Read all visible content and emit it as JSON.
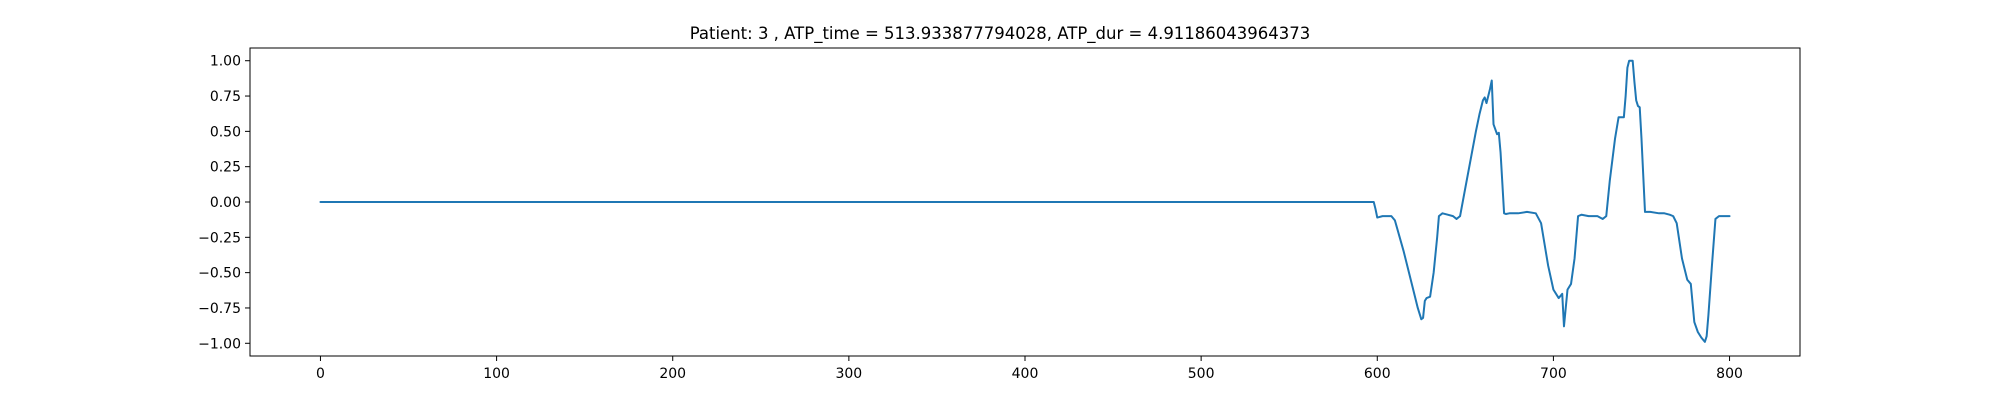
{
  "chart_data": {
    "type": "line",
    "title": "Patient: 3 , ATP_time = 513.933877794028, ATP_dur = 4.91186043964373",
    "xlabel": "",
    "ylabel": "",
    "xlim": [
      -40,
      840
    ],
    "ylim": [
      -1.09,
      1.09
    ],
    "xticks": [
      0,
      100,
      200,
      300,
      400,
      500,
      600,
      700,
      800
    ],
    "yticks": [
      1.0,
      0.75,
      0.5,
      0.25,
      0.0,
      -0.25,
      -0.5,
      -0.75,
      -1.0
    ],
    "xtick_labels": [
      "0",
      "100",
      "200",
      "300",
      "400",
      "500",
      "600",
      "700",
      "800"
    ],
    "ytick_labels": [
      "1.00",
      "0.75",
      "0.50",
      "0.25",
      "0.00",
      "−0.25",
      "−0.50",
      "−0.75",
      "−1.00"
    ],
    "grid": false,
    "series": [
      {
        "color": "#1f77b4",
        "x": [
          0,
          100,
          200,
          300,
          400,
          500,
          598,
          599,
          600,
          603,
          606,
          608,
          610,
          615,
          620,
          623,
          625,
          626,
          627,
          628,
          630,
          632,
          634,
          635,
          637,
          640,
          643,
          645,
          647,
          650,
          653,
          656,
          658,
          660,
          661,
          662,
          664,
          665,
          666,
          668,
          669,
          670,
          672,
          673,
          675,
          680,
          685,
          690,
          693,
          695,
          697,
          700,
          703,
          705,
          706,
          707,
          708,
          710,
          712,
          714,
          716,
          720,
          725,
          728,
          730,
          732,
          735,
          737,
          740,
          741,
          742,
          743,
          744,
          745,
          746,
          747,
          748,
          749,
          750,
          752,
          755,
          760,
          763,
          766,
          768,
          770,
          773,
          776,
          778,
          780,
          782,
          784,
          786,
          787,
          788,
          790,
          792,
          794,
          797,
          800
        ],
        "y": [
          0,
          0,
          0,
          0,
          0,
          0,
          0,
          -0.05,
          -0.11,
          -0.1,
          -0.1,
          -0.1,
          -0.13,
          -0.35,
          -0.6,
          -0.75,
          -0.83,
          -0.82,
          -0.7,
          -0.68,
          -0.67,
          -0.5,
          -0.25,
          -0.1,
          -0.08,
          -0.09,
          -0.1,
          -0.12,
          -0.1,
          0.1,
          0.3,
          0.5,
          0.62,
          0.72,
          0.74,
          0.7,
          0.8,
          0.86,
          0.55,
          0.48,
          0.49,
          0.35,
          -0.08,
          -0.085,
          -0.08,
          -0.08,
          -0.07,
          -0.08,
          -0.15,
          -0.3,
          -0.45,
          -0.62,
          -0.68,
          -0.65,
          -0.88,
          -0.75,
          -0.62,
          -0.58,
          -0.4,
          -0.1,
          -0.09,
          -0.1,
          -0.1,
          -0.12,
          -0.1,
          0.15,
          0.45,
          0.6,
          0.6,
          0.75,
          0.95,
          1.0,
          1.0,
          1.0,
          0.85,
          0.72,
          0.68,
          0.67,
          0.45,
          -0.07,
          -0.07,
          -0.08,
          -0.08,
          -0.09,
          -0.1,
          -0.15,
          -0.4,
          -0.55,
          -0.58,
          -0.85,
          -0.92,
          -0.96,
          -0.99,
          -0.95,
          -0.8,
          -0.45,
          -0.12,
          -0.1,
          -0.1,
          -0.1
        ]
      }
    ]
  }
}
